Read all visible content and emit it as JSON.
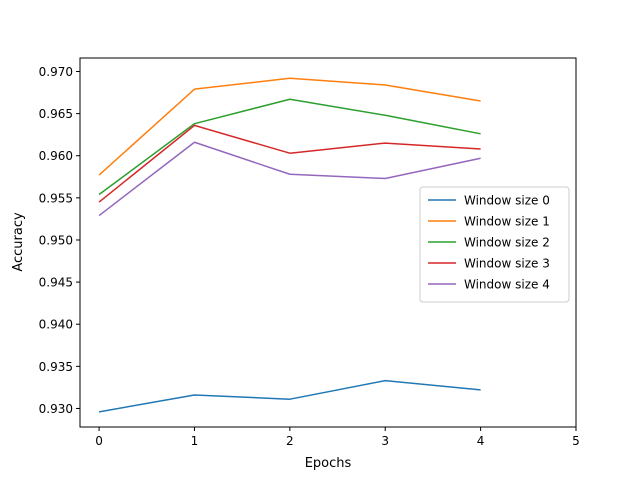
{
  "chart_data": {
    "type": "line",
    "xlabel": "Epochs",
    "ylabel": "Accuracy",
    "xlim": [
      -0.2,
      5.0
    ],
    "ylim": [
      0.9278,
      0.9716
    ],
    "x_ticks": [
      0,
      1,
      2,
      3,
      4,
      5
    ],
    "x_tick_labels": [
      "0",
      "1",
      "2",
      "3",
      "4",
      "5"
    ],
    "y_ticks": [
      0.93,
      0.935,
      0.94,
      0.945,
      0.95,
      0.955,
      0.96,
      0.965,
      0.97
    ],
    "y_tick_labels": [
      "0.930",
      "0.935",
      "0.940",
      "0.945",
      "0.950",
      "0.955",
      "0.960",
      "0.965",
      "0.970"
    ],
    "grid": false,
    "legend_position": "center-right",
    "x": [
      0,
      1,
      2,
      3,
      4
    ],
    "series": [
      {
        "name": "Window size 0",
        "color": "#1f77b4",
        "values": [
          0.9296,
          0.9316,
          0.9311,
          0.9333,
          0.9322
        ]
      },
      {
        "name": "Window size 1",
        "color": "#ff7f0e",
        "values": [
          0.9577,
          0.9679,
          0.9692,
          0.9684,
          0.9665
        ]
      },
      {
        "name": "Window size 2",
        "color": "#2ca02c",
        "values": [
          0.9554,
          0.9638,
          0.9667,
          0.9648,
          0.9626
        ]
      },
      {
        "name": "Window size 3",
        "color": "#d62728",
        "values": [
          0.9545,
          0.9636,
          0.9603,
          0.9615,
          0.9608
        ]
      },
      {
        "name": "Window size 4",
        "color": "#9467bd",
        "values": [
          0.9529,
          0.9616,
          0.9578,
          0.9573,
          0.9597
        ]
      }
    ]
  }
}
